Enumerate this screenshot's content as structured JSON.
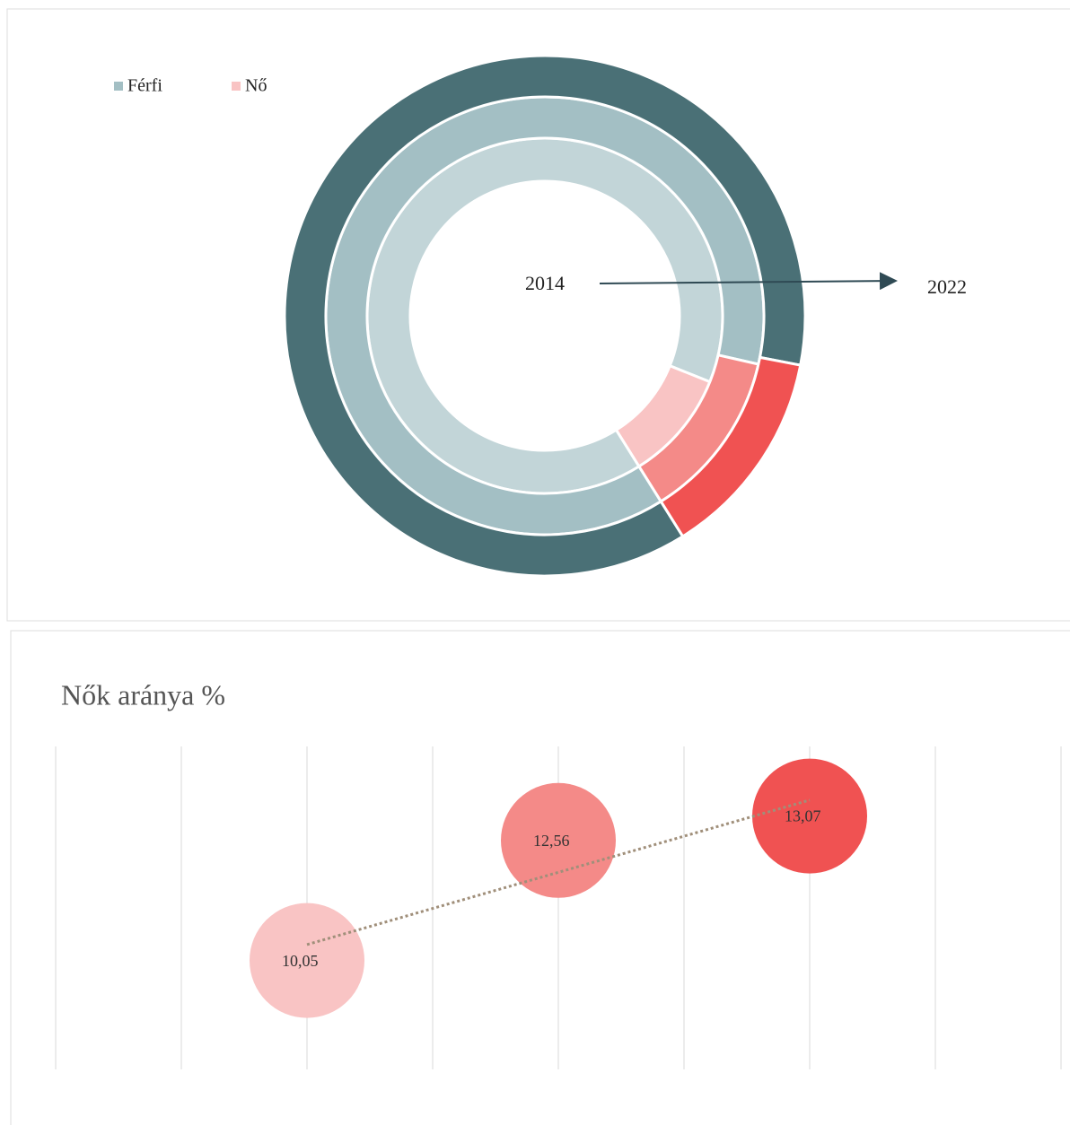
{
  "chart_data": [
    {
      "type": "donut",
      "series": [
        {
          "name": "Férfi",
          "color": "#a3bfc4",
          "colors": [
            "#c2d5d8",
            "#a3bfc4",
            "#4a7076"
          ],
          "values": [
            89.95,
            87.44,
            86.93
          ]
        },
        {
          "name": "Nő",
          "color": "#f9c4c4",
          "colors": [
            "#f9c4c4",
            "#f48a88",
            "#f05252"
          ],
          "values": [
            10.05,
            12.56,
            13.07
          ]
        }
      ],
      "annotations": [
        "2014",
        "2022"
      ]
    },
    {
      "type": "bubble",
      "title": "Nők aránya %",
      "values": [
        10.05,
        12.56,
        13.07
      ],
      "value_labels": [
        "10,05",
        "12,56",
        "13,07"
      ],
      "colors": [
        "#f9c4c4",
        "#f48a88",
        "#f05252"
      ],
      "ylim": [
        8,
        14
      ],
      "trendline": "linear",
      "grid": true
    }
  ]
}
